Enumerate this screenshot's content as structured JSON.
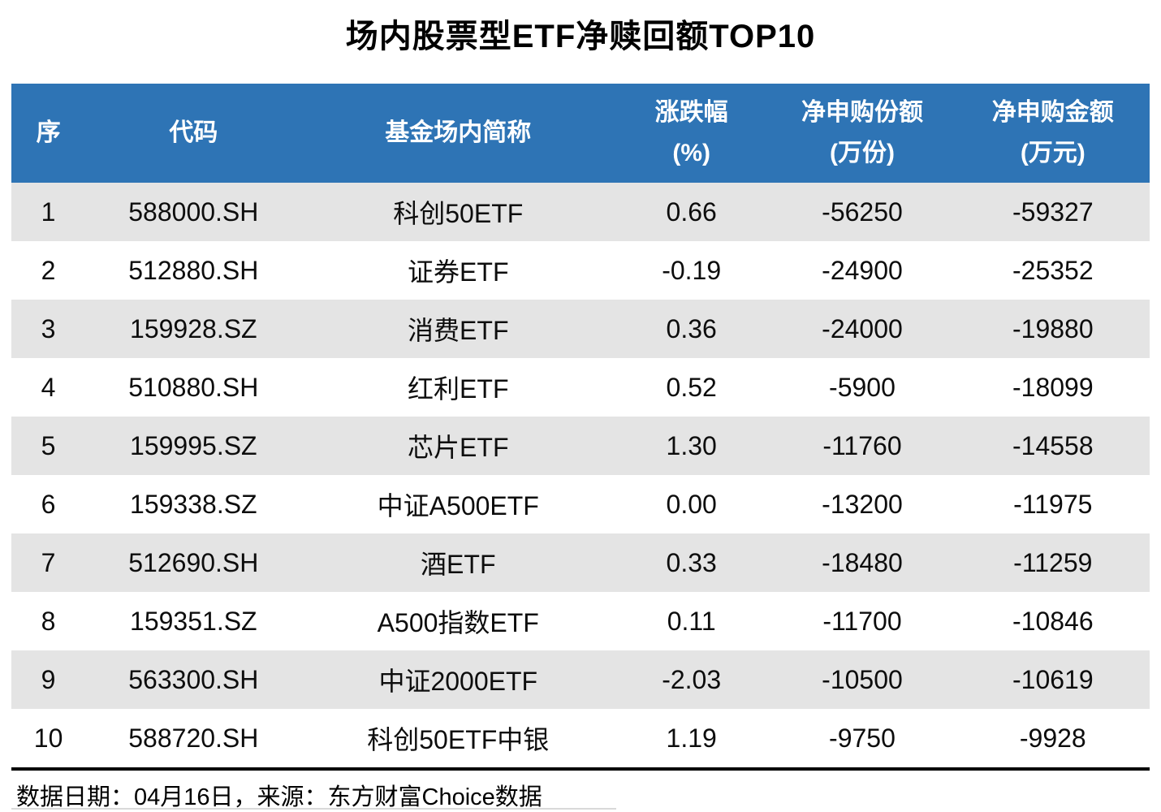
{
  "title": "场内股票型ETF净赎回额TOP10",
  "chart_data": {
    "type": "table",
    "title": "场内股票型ETF净赎回额TOP10",
    "columns": [
      {
        "label": "序",
        "unit": ""
      },
      {
        "label": "代码",
        "unit": ""
      },
      {
        "label": "基金场内简称",
        "unit": ""
      },
      {
        "label": "涨跌幅",
        "unit": "(%)"
      },
      {
        "label": "净申购份额",
        "unit": "(万份)"
      },
      {
        "label": "净申购金额",
        "unit": "(万元)"
      }
    ],
    "rows": [
      [
        "1",
        "588000.SH",
        "科创50ETF",
        "0.66",
        "-56250",
        "-59327"
      ],
      [
        "2",
        "512880.SH",
        "证券ETF",
        "-0.19",
        "-24900",
        "-25352"
      ],
      [
        "3",
        "159928.SZ",
        "消费ETF",
        "0.36",
        "-24000",
        "-19880"
      ],
      [
        "4",
        "510880.SH",
        "红利ETF",
        "0.52",
        "-5900",
        "-18099"
      ],
      [
        "5",
        "159995.SZ",
        "芯片ETF",
        "1.30",
        "-11760",
        "-14558"
      ],
      [
        "6",
        "159338.SZ",
        "中证A500ETF",
        "0.00",
        "-13200",
        "-11975"
      ],
      [
        "7",
        "512690.SH",
        "酒ETF",
        "0.33",
        "-18480",
        "-11259"
      ],
      [
        "8",
        "159351.SZ",
        "A500指数ETF",
        "0.11",
        "-11700",
        "-10846"
      ],
      [
        "9",
        "563300.SH",
        "中证2000ETF",
        "-2.03",
        "-10500",
        "-10619"
      ],
      [
        "10",
        "588720.SH",
        "科创50ETF中银",
        "1.19",
        "-9750",
        "-9928"
      ]
    ],
    "layout": {
      "striped": true,
      "header_position": "top"
    }
  },
  "footer": {
    "note": "数据日期：04月16日，来源：东方财富Choice数据"
  },
  "colors": {
    "header_bg": "#2e74b5",
    "header_text": "#ffffff",
    "row_alt_bg": "#e4e4e4",
    "row_bg": "#ffffff",
    "divider": "#000000",
    "text": "#0d0d0d"
  }
}
